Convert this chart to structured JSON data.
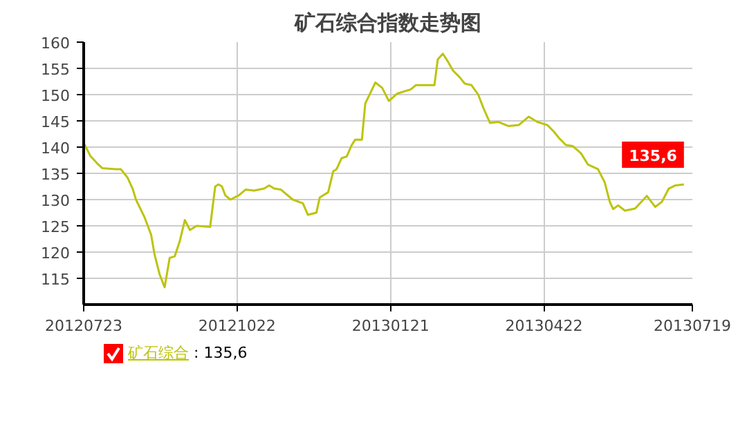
{
  "chart_data": {
    "type": "line",
    "title": "矿石综合指数走势图",
    "x": [
      "2012-07-23",
      "2012-07-27",
      "2012-07-31",
      "2012-08-03",
      "2012-08-11",
      "2012-08-14",
      "2012-08-18",
      "2012-08-21",
      "2012-08-23",
      "2012-08-28",
      "2012-09-01",
      "2012-09-03",
      "2012-09-06",
      "2012-09-09",
      "2012-09-12",
      "2012-09-15",
      "2012-09-18",
      "2012-09-21",
      "2012-09-24",
      "2012-09-28",
      "2012-10-06",
      "2012-10-09",
      "2012-10-11",
      "2012-10-13",
      "2012-10-15",
      "2012-10-18",
      "2012-10-23",
      "2012-10-27",
      "2012-11-01",
      "2012-11-07",
      "2012-11-10",
      "2012-11-13",
      "2012-11-17",
      "2012-11-24",
      "2012-11-30",
      "2012-12-03",
      "2012-12-08",
      "2012-12-10",
      "2012-12-15",
      "2012-12-18",
      "2012-12-20",
      "2012-12-23",
      "2012-12-26",
      "2012-12-29",
      "2012-12-31",
      "2013-01-04",
      "2013-01-06",
      "2013-01-12",
      "2013-01-16",
      "2013-01-20",
      "2013-01-25",
      "2013-02-02",
      "2013-02-05",
      "2013-02-16",
      "2013-02-18",
      "2013-02-21",
      "2013-02-24",
      "2013-02-27",
      "2013-03-03",
      "2013-03-06",
      "2013-03-10",
      "2013-03-14",
      "2013-03-17",
      "2013-03-21",
      "2013-03-26",
      "2013-04-01",
      "2013-04-07",
      "2013-04-13",
      "2013-04-18",
      "2013-04-24",
      "2013-04-28",
      "2013-05-01",
      "2013-05-05",
      "2013-05-09",
      "2013-05-14",
      "2013-05-18",
      "2013-05-24",
      "2013-05-28",
      "2013-05-31",
      "2013-06-02",
      "2013-06-05",
      "2013-06-09",
      "2013-06-15",
      "2013-06-22",
      "2013-06-27",
      "2013-07-01",
      "2013-07-05",
      "2013-07-09",
      "2013-07-14"
    ],
    "series": [
      {
        "name": "矿石综合",
        "color": "#bcc40a",
        "values": [
          140.8,
          138.3,
          136.9,
          136,
          135.8,
          135.8,
          134.2,
          132.1,
          130,
          126.7,
          123.3,
          119.6,
          115.8,
          113.3,
          118.9,
          119.2,
          122.1,
          126.1,
          124.2,
          125,
          124.8,
          132.5,
          132.9,
          132.5,
          130.8,
          130,
          130.8,
          131.9,
          131.7,
          132.1,
          132.7,
          132.1,
          131.9,
          130,
          129.3,
          127.1,
          127.5,
          130.4,
          131.4,
          135.4,
          135.8,
          137.9,
          138.2,
          140.4,
          141.4,
          141.4,
          148.3,
          152.3,
          151.3,
          148.8,
          150.2,
          151,
          151.8,
          151.8,
          156.7,
          157.8,
          156.3,
          154.6,
          153.3,
          152.1,
          151.8,
          150,
          147.5,
          144.6,
          144.8,
          144,
          144.2,
          145.8,
          144.8,
          144.2,
          142.9,
          141.7,
          140.4,
          140.2,
          138.8,
          136.7,
          135.8,
          133.3,
          129.6,
          128.2,
          128.9,
          127.9,
          128.3,
          130.7,
          128.6,
          129.6,
          132.1,
          132.7,
          132.9
        ]
      }
    ],
    "xlim": [
      "2012-07-23",
      "2013-07-19"
    ],
    "xticks": [
      {
        "value": "2012-07-23",
        "label": "20120723"
      },
      {
        "value": "2012-10-22",
        "label": "20121022"
      },
      {
        "value": "2013-01-21",
        "label": "20130121"
      },
      {
        "value": "2013-04-22",
        "label": "20130422"
      },
      {
        "value": "2013-07-19",
        "label": "20130719"
      }
    ],
    "ylim": [
      110,
      160
    ],
    "yticks": [
      115,
      120,
      125,
      130,
      135,
      140,
      145,
      150,
      155,
      160
    ],
    "grid": true,
    "marker": "none",
    "line_style": "solid",
    "annotations": [
      "135,6",
      ": 135,6"
    ]
  }
}
